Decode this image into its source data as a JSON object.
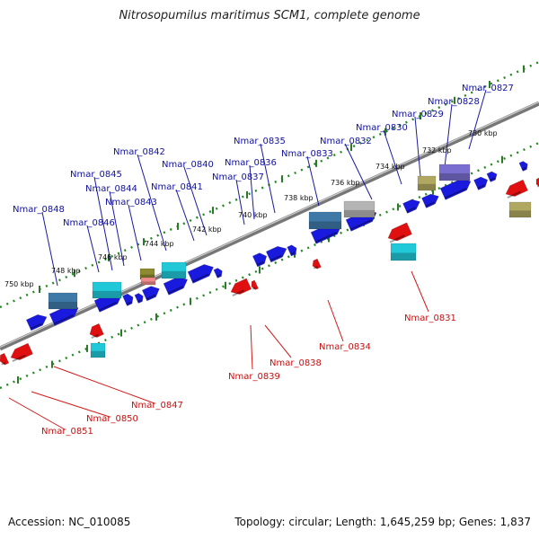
{
  "title": "Nitrosopumilus maritimus SCM1, complete genome",
  "footer": {
    "accession": "Accession: NC_010085",
    "summary": "Topology: circular; Length: 1,645,259 bp; Genes: 1,837"
  },
  "colors": {
    "forward_gene": "#1a1adf",
    "reverse_gene": "#e01010",
    "cyan_feature": "#20c8d8",
    "steelblue_feature": "#3f79a8",
    "gray_feature": "#b4b4b4",
    "olive_feature": "#b0a860",
    "purple_feature": "#7a6fd0",
    "forward_label": "#1010a0",
    "reverse_label": "#c81010",
    "scale_dots": "#228822",
    "backbone": "#777777"
  },
  "scale_labels": [
    "730 kbp",
    "732 kbp",
    "734 kbp",
    "736 kbp",
    "738 kbp",
    "740 kbp",
    "742 kbp",
    "744 kbp",
    "746 kbp",
    "748 kbp",
    "750 kbp"
  ],
  "forward_labels": [
    "Nmar_0827",
    "Nmar_0828",
    "Nmar_0829",
    "Nmar_0830",
    "Nmar_0832",
    "Nmar_0833",
    "Nmar_0835",
    "Nmar_0836",
    "Nmar_0837",
    "Nmar_0840",
    "Nmar_0841",
    "Nmar_0842",
    "Nmar_0843",
    "Nmar_0844",
    "Nmar_0845",
    "Nmar_0846",
    "Nmar_0848"
  ],
  "reverse_labels": [
    "Nmar_0831",
    "Nmar_0834",
    "Nmar_0838",
    "Nmar_0839",
    "Nmar_0847",
    "Nmar_0850",
    "Nmar_0851"
  ]
}
